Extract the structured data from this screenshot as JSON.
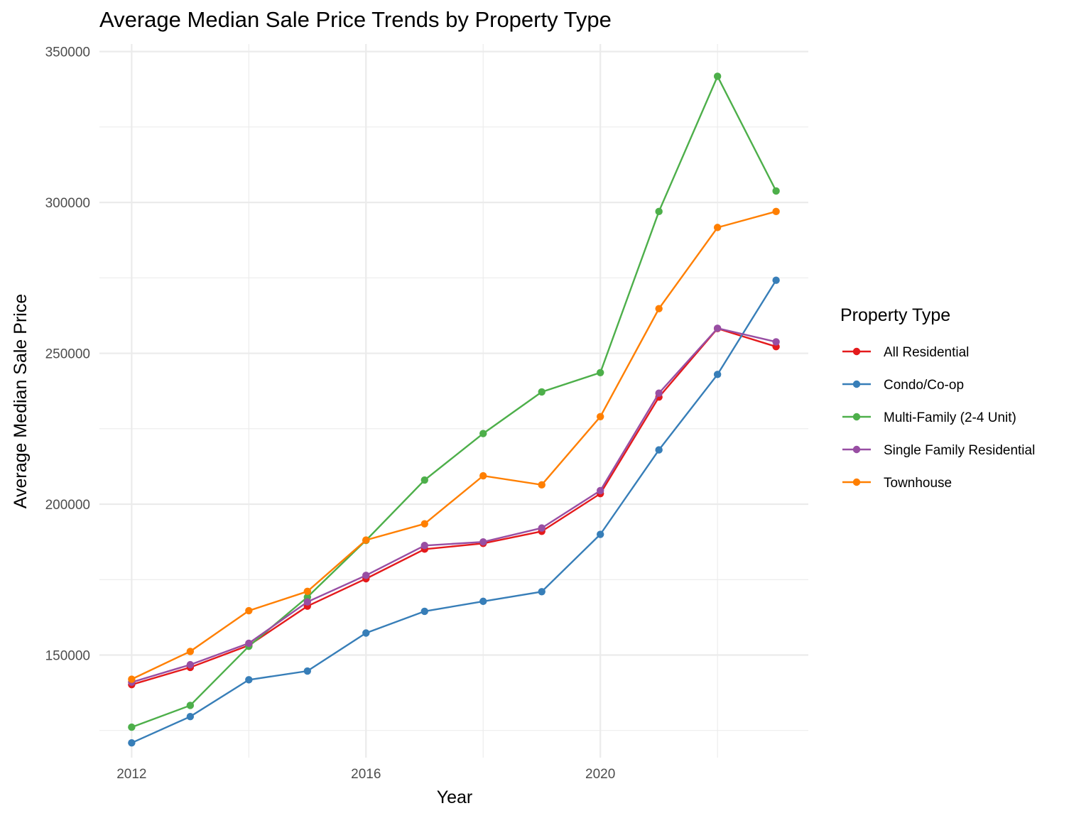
{
  "chart_data": {
    "type": "line",
    "title": "Average Median Sale Price Trends by Property Type",
    "xlabel": "Year",
    "ylabel": "Average Median Sale Price",
    "x": [
      2012,
      2013,
      2014,
      2015,
      2016,
      2017,
      2018,
      2019,
      2020,
      2021,
      2022,
      2023
    ],
    "xlim": [
      2011.45,
      2023.55
    ],
    "ylim": [
      116000,
      352500
    ],
    "x_ticks": [
      2012,
      2016,
      2020
    ],
    "x_tick_labels": [
      "2012",
      "2016",
      "2020"
    ],
    "y_ticks": [
      150000,
      200000,
      250000,
      300000,
      350000
    ],
    "y_tick_labels": [
      "150000",
      "200000",
      "250000",
      "300000",
      "350000"
    ],
    "grid": true,
    "legend": {
      "title": "Property Type",
      "position": "right"
    },
    "series": [
      {
        "name": "All Residential",
        "color": "#E41A1C",
        "values": [
          140200,
          145900,
          153200,
          166200,
          175300,
          185100,
          187000,
          191000,
          203500,
          235500,
          258200,
          252200
        ]
      },
      {
        "name": "Condo/Co-op",
        "color": "#377EB8",
        "values": [
          120900,
          129600,
          141800,
          144700,
          157300,
          164500,
          167800,
          171000,
          190000,
          218000,
          243000,
          274200
        ]
      },
      {
        "name": "Multi-Family (2-4 Unit)",
        "color": "#4DAF4A",
        "values": [
          126100,
          133300,
          152900,
          169200,
          188000,
          208000,
          223400,
          237200,
          243600,
          297000,
          341800,
          303800
        ]
      },
      {
        "name": "Single Family Residential",
        "color": "#984EA3",
        "values": [
          141000,
          146800,
          153900,
          167600,
          176400,
          186300,
          187500,
          192100,
          204500,
          236800,
          258300,
          253800
        ]
      },
      {
        "name": "Townhouse",
        "color": "#FF7F00",
        "values": [
          142000,
          151200,
          164700,
          171100,
          188100,
          193500,
          209400,
          206400,
          229000,
          264800,
          291700,
          297000
        ]
      }
    ]
  }
}
